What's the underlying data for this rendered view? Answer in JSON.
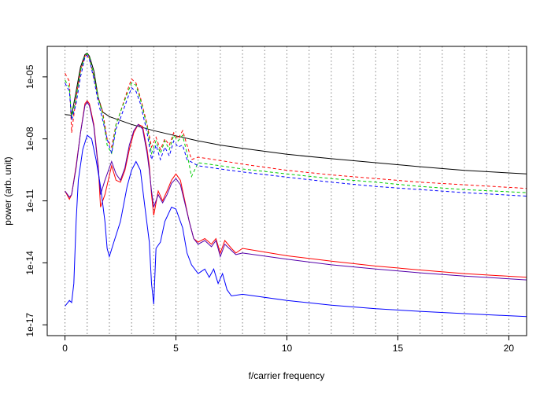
{
  "chart_data": {
    "type": "line",
    "title": "",
    "xlabel": "f/carrier frequency",
    "ylabel": "power (arb. unit)",
    "y_scale": "log",
    "xlim": [
      -0.8,
      20.8
    ],
    "ylim": [
      3e-18,
      0.0003
    ],
    "x_ticks": [
      0,
      5,
      10,
      15,
      20
    ],
    "x_tick_labels": [
      "0",
      "5",
      "10",
      "15",
      "20"
    ],
    "y_ticks": [
      1e-17,
      1e-14,
      1e-11,
      1e-08,
      1e-05
    ],
    "y_tick_labels": [
      "1e-17",
      "1e-14",
      "1e-11",
      "1e-08",
      "1e-05"
    ],
    "vlines": {
      "x": [
        0,
        1,
        2,
        3,
        4,
        5,
        6,
        7,
        8,
        9,
        10,
        11,
        12,
        13,
        14,
        15,
        16,
        17,
        18,
        19,
        20
      ],
      "color": "#808080",
      "style": "dotted"
    },
    "grid": false,
    "legend": "none",
    "series": [
      {
        "color": "#000000",
        "style": "solid",
        "points": [
          [
            0,
            1.5e-07
          ],
          [
            0.3,
            1.4e-07
          ],
          [
            0.5,
            2e-06
          ],
          [
            0.7,
            3e-05
          ],
          [
            0.9,
            0.00012
          ],
          [
            1.0,
            0.00014
          ],
          [
            1.1,
            0.0001
          ],
          [
            1.3,
            2e-05
          ],
          [
            1.5,
            1e-06
          ],
          [
            1.7,
            2e-07
          ],
          [
            2,
            1.2e-07
          ],
          [
            3,
            5e-08
          ],
          [
            4,
            2.5e-08
          ],
          [
            5,
            1.4e-08
          ],
          [
            6,
            8e-09
          ],
          [
            7,
            5e-09
          ],
          [
            8,
            3.5e-09
          ],
          [
            10,
            1.8e-09
          ],
          [
            12,
            1.1e-09
          ],
          [
            14,
            7e-10
          ],
          [
            16,
            4.5e-10
          ],
          [
            18,
            3e-10
          ],
          [
            20.8,
            2e-10
          ]
        ]
      },
      {
        "color": "#ff0000",
        "style": "dashed",
        "points": [
          [
            0,
            1.5e-05
          ],
          [
            0.2,
            6e-06
          ],
          [
            0.3,
            2e-08
          ],
          [
            0.5,
            1e-06
          ],
          [
            0.7,
            2e-05
          ],
          [
            0.9,
            0.0001
          ],
          [
            1.0,
            0.00012
          ],
          [
            1.1,
            8e-05
          ],
          [
            1.3,
            1e-05
          ],
          [
            1.5,
            1e-06
          ],
          [
            1.7,
            2e-07
          ],
          [
            1.9,
            1e-08
          ],
          [
            2.1,
            4e-09
          ],
          [
            2.3,
            5e-08
          ],
          [
            2.5,
            2e-07
          ],
          [
            2.8,
            2e-06
          ],
          [
            3.0,
            8e-06
          ],
          [
            3.2,
            5e-06
          ],
          [
            3.4,
            1e-06
          ],
          [
            3.7,
            5e-08
          ],
          [
            3.9,
            4e-09
          ],
          [
            4.1,
            1.2e-08
          ],
          [
            4.3,
            3e-09
          ],
          [
            4.5,
            1e-08
          ],
          [
            4.7,
            5e-09
          ],
          [
            4.9,
            2e-08
          ],
          [
            5.1,
            1e-08
          ],
          [
            5.3,
            2.5e-08
          ],
          [
            5.5,
            5e-09
          ],
          [
            5.7,
            1e-09
          ],
          [
            6,
            1.3e-09
          ],
          [
            7,
            9e-10
          ],
          [
            8,
            6e-10
          ],
          [
            10,
            3e-10
          ],
          [
            12,
            1.8e-10
          ],
          [
            14,
            1.2e-10
          ],
          [
            16,
            8e-11
          ],
          [
            18,
            6e-11
          ],
          [
            20.8,
            4e-11
          ]
        ]
      },
      {
        "color": "#00cc00",
        "style": "dashed",
        "points": [
          [
            0,
            7e-06
          ],
          [
            0.2,
            3e-06
          ],
          [
            0.3,
            1e-07
          ],
          [
            0.5,
            1e-06
          ],
          [
            0.7,
            2e-05
          ],
          [
            0.9,
            0.00011
          ],
          [
            1.0,
            0.00013
          ],
          [
            1.1,
            9e-05
          ],
          [
            1.3,
            1.2e-05
          ],
          [
            1.5,
            1e-06
          ],
          [
            1.7,
            1.5e-07
          ],
          [
            1.9,
            5e-09
          ],
          [
            2.1,
            2e-09
          ],
          [
            2.3,
            5e-08
          ],
          [
            2.5,
            2e-07
          ],
          [
            2.8,
            1.5e-06
          ],
          [
            3.0,
            5e-06
          ],
          [
            3.2,
            4e-06
          ],
          [
            3.4,
            8e-07
          ],
          [
            3.7,
            4e-08
          ],
          [
            3.9,
            2e-09
          ],
          [
            4.1,
            8e-09
          ],
          [
            4.3,
            2e-09
          ],
          [
            4.5,
            8e-09
          ],
          [
            4.7,
            3e-09
          ],
          [
            4.9,
            1.5e-08
          ],
          [
            5.1,
            8e-09
          ],
          [
            5.3,
            1.5e-08
          ],
          [
            5.5,
            2e-09
          ],
          [
            5.7,
            1.5e-10
          ],
          [
            6,
            7e-10
          ],
          [
            7,
            5e-10
          ],
          [
            8,
            3.5e-10
          ],
          [
            10,
            2e-10
          ],
          [
            12,
            1.2e-10
          ],
          [
            14,
            8e-11
          ],
          [
            16,
            5e-11
          ],
          [
            18,
            3.5e-11
          ],
          [
            20.8,
            2.5e-11
          ]
        ]
      },
      {
        "color": "#0000ff",
        "style": "dashed",
        "points": [
          [
            0,
            5e-06
          ],
          [
            0.2,
            2e-06
          ],
          [
            0.3,
            8e-08
          ],
          [
            0.5,
            5e-07
          ],
          [
            0.7,
            1e-05
          ],
          [
            0.9,
            9e-05
          ],
          [
            1.0,
            0.00011
          ],
          [
            1.1,
            7e-05
          ],
          [
            1.3,
            8e-06
          ],
          [
            1.5,
            6e-07
          ],
          [
            1.7,
            8e-08
          ],
          [
            1.9,
            1e-08
          ],
          [
            2.1,
            2e-09
          ],
          [
            2.3,
            3e-08
          ],
          [
            2.5,
            1e-07
          ],
          [
            2.8,
            8e-07
          ],
          [
            3.0,
            3e-06
          ],
          [
            3.2,
            2e-06
          ],
          [
            3.4,
            5e-07
          ],
          [
            3.7,
            2e-08
          ],
          [
            3.9,
            1e-09
          ],
          [
            4.1,
            5e-09
          ],
          [
            4.3,
            1e-09
          ],
          [
            4.5,
            4e-09
          ],
          [
            4.7,
            1.5e-09
          ],
          [
            4.9,
            8e-09
          ],
          [
            5.1,
            4e-09
          ],
          [
            5.3,
            5e-09
          ],
          [
            5.5,
            1e-09
          ],
          [
            6,
            5e-10
          ],
          [
            7,
            3.5e-10
          ],
          [
            8,
            2.5e-10
          ],
          [
            10,
            1.4e-10
          ],
          [
            12,
            8e-11
          ],
          [
            14,
            5e-11
          ],
          [
            16,
            3.5e-11
          ],
          [
            18,
            2.5e-11
          ],
          [
            20.8,
            1.7e-11
          ]
        ]
      },
      {
        "color": "#ff0000",
        "style": "solid",
        "points": [
          [
            0,
            3e-11
          ],
          [
            0.2,
            1.2e-11
          ],
          [
            0.3,
            2e-11
          ],
          [
            0.5,
            5e-10
          ],
          [
            0.7,
            2e-08
          ],
          [
            0.9,
            5e-07
          ],
          [
            1.0,
            7e-07
          ],
          [
            1.1,
            5e-07
          ],
          [
            1.3,
            5e-08
          ],
          [
            1.5,
            5e-10
          ],
          [
            1.6,
            5e-12
          ],
          [
            1.8,
            2e-11
          ],
          [
            2.1,
            5e-10
          ],
          [
            2.3,
            1e-10
          ],
          [
            2.5,
            8e-11
          ],
          [
            2.7,
            3e-10
          ],
          [
            2.9,
            3e-09
          ],
          [
            3.1,
            2e-08
          ],
          [
            3.3,
            5e-08
          ],
          [
            3.5,
            4e-08
          ],
          [
            3.7,
            3e-09
          ],
          [
            3.8,
            5e-10
          ],
          [
            3.9,
            2e-11
          ],
          [
            4.0,
            2e-12
          ],
          [
            4.2,
            3e-11
          ],
          [
            4.4,
            1e-11
          ],
          [
            4.6,
            3e-11
          ],
          [
            4.8,
            1e-10
          ],
          [
            5.0,
            2e-10
          ],
          [
            5.2,
            1e-10
          ],
          [
            5.4,
            1e-11
          ],
          [
            5.6,
            1e-12
          ],
          [
            5.8,
            1.5e-13
          ],
          [
            6,
            1e-13
          ],
          [
            6.3,
            1.5e-13
          ],
          [
            6.6,
            8e-14
          ],
          [
            6.8,
            1.5e-13
          ],
          [
            7.0,
            3e-14
          ],
          [
            7.2,
            1.2e-13
          ],
          [
            7.5,
            5e-14
          ],
          [
            7.7,
            3e-14
          ],
          [
            8,
            5e-14
          ],
          [
            10,
            2.2e-14
          ],
          [
            12,
            1.2e-14
          ],
          [
            14,
            7e-15
          ],
          [
            16,
            4.5e-15
          ],
          [
            18,
            3e-15
          ],
          [
            20.8,
            2e-15
          ]
        ]
      },
      {
        "color": "#5500aa",
        "style": "solid",
        "points": [
          [
            0,
            3e-11
          ],
          [
            0.2,
            1.5e-11
          ],
          [
            0.3,
            2e-11
          ],
          [
            0.5,
            4e-10
          ],
          [
            0.7,
            2e-08
          ],
          [
            0.9,
            4e-07
          ],
          [
            1.0,
            6e-07
          ],
          [
            1.1,
            4e-07
          ],
          [
            1.3,
            4e-08
          ],
          [
            1.5,
            4e-10
          ],
          [
            1.6,
            2e-11
          ],
          [
            1.8,
            1e-10
          ],
          [
            2.1,
            8e-10
          ],
          [
            2.3,
            2e-10
          ],
          [
            2.5,
            1e-10
          ],
          [
            2.7,
            4e-10
          ],
          [
            2.9,
            5e-09
          ],
          [
            3.1,
            2.5e-08
          ],
          [
            3.3,
            5e-08
          ],
          [
            3.5,
            3e-08
          ],
          [
            3.7,
            2e-09
          ],
          [
            3.8,
            3e-10
          ],
          [
            3.9,
            3e-11
          ],
          [
            4.0,
            5e-12
          ],
          [
            4.2,
            2e-11
          ],
          [
            4.4,
            8e-12
          ],
          [
            4.6,
            2e-11
          ],
          [
            4.8,
            7e-11
          ],
          [
            5.0,
            1.2e-10
          ],
          [
            5.2,
            6e-11
          ],
          [
            5.4,
            8e-12
          ],
          [
            5.6,
            1e-12
          ],
          [
            5.8,
            1.5e-13
          ],
          [
            6,
            8e-14
          ],
          [
            6.3,
            1.2e-13
          ],
          [
            6.6,
            6e-14
          ],
          [
            6.8,
            1.2e-13
          ],
          [
            7.0,
            2e-14
          ],
          [
            7.2,
            8e-14
          ],
          [
            7.5,
            4e-14
          ],
          [
            7.7,
            2.5e-14
          ],
          [
            8,
            3e-14
          ],
          [
            10,
            1.5e-14
          ],
          [
            12,
            8e-15
          ],
          [
            14,
            5e-15
          ],
          [
            16,
            3.3e-15
          ],
          [
            18,
            2.3e-15
          ],
          [
            20.8,
            1.5e-15
          ]
        ]
      },
      {
        "color": "#0000ff",
        "style": "solid",
        "points": [
          [
            0,
            8e-17
          ],
          [
            0.2,
            1.5e-16
          ],
          [
            0.3,
            1.2e-16
          ],
          [
            0.4,
            1e-15
          ],
          [
            0.5,
            1e-12
          ],
          [
            0.6,
            1e-10
          ],
          [
            0.8,
            3e-09
          ],
          [
            1.0,
            1.5e-08
          ],
          [
            1.2,
            1e-08
          ],
          [
            1.4,
            1e-09
          ],
          [
            1.6,
            5e-11
          ],
          [
            1.8,
            1e-12
          ],
          [
            1.9,
            5e-14
          ],
          [
            2.0,
            2e-14
          ],
          [
            2.2,
            1e-13
          ],
          [
            2.5,
            1e-12
          ],
          [
            2.8,
            5e-11
          ],
          [
            3.0,
            3e-10
          ],
          [
            3.2,
            8e-10
          ],
          [
            3.4,
            3e-10
          ],
          [
            3.6,
            5e-12
          ],
          [
            3.8,
            1e-13
          ],
          [
            3.9,
            1e-15
          ],
          [
            4.0,
            1e-16
          ],
          [
            4.1,
            5e-14
          ],
          [
            4.3,
            1e-13
          ],
          [
            4.5,
            1e-12
          ],
          [
            4.8,
            5e-12
          ],
          [
            5.0,
            4e-12
          ],
          [
            5.3,
            5e-13
          ],
          [
            5.5,
            3e-14
          ],
          [
            5.7,
            8e-15
          ],
          [
            6,
            3e-15
          ],
          [
            6.3,
            5e-15
          ],
          [
            6.5,
            2e-15
          ],
          [
            6.7,
            5e-15
          ],
          [
            6.9,
            1e-15
          ],
          [
            7.1,
            3e-15
          ],
          [
            7.3,
            5e-16
          ],
          [
            7.5,
            2.5e-16
          ],
          [
            8,
            3e-16
          ],
          [
            10,
            1.5e-16
          ],
          [
            12,
            9e-17
          ],
          [
            14,
            6e-17
          ],
          [
            16,
            4.5e-17
          ],
          [
            18,
            3.5e-17
          ],
          [
            20.8,
            2.5e-17
          ]
        ]
      }
    ]
  }
}
